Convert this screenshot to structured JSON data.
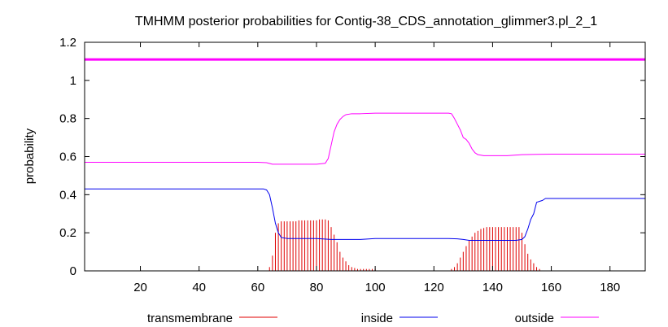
{
  "chart_data": {
    "type": "line",
    "title": "TMHMM posterior probabilities for Contig-38_CDS_annotation_glimmer3.pl_2_1",
    "xlabel": "",
    "ylabel": "probability",
    "xlim": [
      1,
      192
    ],
    "ylim": [
      0,
      1.2
    ],
    "xticks": [
      20,
      40,
      60,
      80,
      100,
      120,
      140,
      160,
      180
    ],
    "yticks": [
      0,
      0.2,
      0.4,
      0.6,
      0.8,
      1,
      1.2
    ],
    "ytick_labels": [
      "0",
      "0.2",
      "0.4",
      "0.6",
      "0.8",
      "1",
      "1.2"
    ],
    "grid": false,
    "legend_position": "bottom",
    "reference_line": {
      "y": 1.11,
      "color": "#ff00ff"
    },
    "series": [
      {
        "name": "transmembrane",
        "color": "#e00000",
        "style": "impulses",
        "x": [
          64,
          65,
          66,
          67,
          68,
          69,
          70,
          71,
          72,
          73,
          74,
          75,
          76,
          77,
          78,
          79,
          80,
          81,
          82,
          83,
          84,
          85,
          86,
          87,
          88,
          89,
          90,
          91,
          92,
          93,
          94,
          95,
          96,
          97,
          98,
          99,
          100,
          126,
          127,
          128,
          129,
          130,
          131,
          132,
          133,
          134,
          135,
          136,
          137,
          138,
          139,
          140,
          141,
          142,
          143,
          144,
          145,
          146,
          147,
          148,
          149,
          150,
          151,
          152,
          153,
          154,
          155,
          156
        ],
        "values": [
          0.02,
          0.08,
          0.2,
          0.25,
          0.26,
          0.26,
          0.26,
          0.26,
          0.26,
          0.26,
          0.265,
          0.265,
          0.265,
          0.265,
          0.265,
          0.265,
          0.265,
          0.27,
          0.27,
          0.27,
          0.265,
          0.23,
          0.19,
          0.15,
          0.1,
          0.07,
          0.05,
          0.03,
          0.02,
          0.015,
          0.01,
          0.01,
          0.01,
          0.01,
          0.01,
          0.01,
          0.01,
          0.01,
          0.02,
          0.04,
          0.07,
          0.1,
          0.13,
          0.16,
          0.18,
          0.2,
          0.21,
          0.22,
          0.225,
          0.23,
          0.23,
          0.23,
          0.23,
          0.23,
          0.23,
          0.23,
          0.23,
          0.23,
          0.23,
          0.23,
          0.23,
          0.2,
          0.14,
          0.09,
          0.06,
          0.04,
          0.02,
          0.01
        ]
      },
      {
        "name": "inside",
        "color": "#0000ee",
        "style": "line",
        "x": [
          1,
          20,
          40,
          55,
          60,
          62,
          63,
          64,
          65,
          66,
          67,
          68,
          70,
          75,
          80,
          85,
          90,
          95,
          100,
          110,
          120,
          125,
          128,
          130,
          132,
          135,
          140,
          145,
          148,
          150,
          151,
          152,
          153,
          154,
          155,
          156,
          157,
          158,
          160,
          170,
          180,
          192
        ],
        "values": [
          0.43,
          0.43,
          0.43,
          0.43,
          0.43,
          0.43,
          0.425,
          0.4,
          0.33,
          0.25,
          0.2,
          0.175,
          0.17,
          0.17,
          0.17,
          0.165,
          0.165,
          0.165,
          0.17,
          0.17,
          0.17,
          0.17,
          0.168,
          0.165,
          0.16,
          0.16,
          0.16,
          0.16,
          0.16,
          0.165,
          0.18,
          0.22,
          0.27,
          0.3,
          0.36,
          0.365,
          0.37,
          0.38,
          0.38,
          0.38,
          0.38,
          0.38
        ]
      },
      {
        "name": "outside",
        "color": "#ff00ff",
        "style": "line",
        "x": [
          1,
          20,
          40,
          60,
          63,
          65,
          70,
          80,
          83,
          84,
          85,
          86,
          87,
          88,
          89,
          90,
          92,
          95,
          100,
          110,
          120,
          125,
          126,
          127,
          128,
          129,
          130,
          131,
          132,
          133,
          134,
          135,
          137,
          140,
          145,
          150,
          155,
          160,
          170,
          180,
          192
        ],
        "values": [
          0.57,
          0.57,
          0.57,
          0.57,
          0.568,
          0.56,
          0.56,
          0.56,
          0.565,
          0.59,
          0.66,
          0.73,
          0.77,
          0.795,
          0.81,
          0.82,
          0.825,
          0.825,
          0.828,
          0.828,
          0.828,
          0.828,
          0.825,
          0.8,
          0.77,
          0.74,
          0.7,
          0.69,
          0.67,
          0.64,
          0.62,
          0.61,
          0.605,
          0.605,
          0.605,
          0.61,
          0.612,
          0.613,
          0.613,
          0.613,
          0.613
        ]
      }
    ]
  }
}
